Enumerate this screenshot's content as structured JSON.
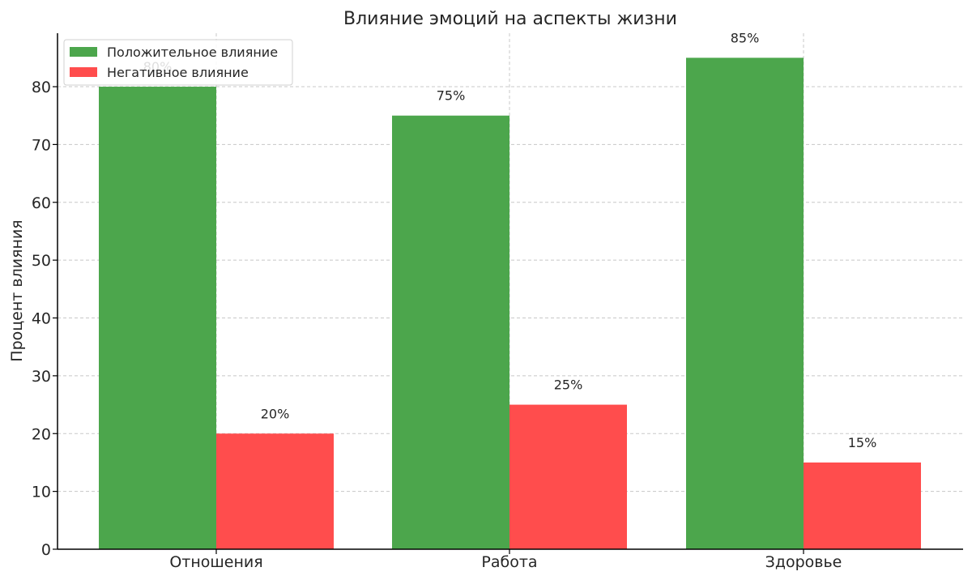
{
  "chart_data": {
    "type": "bar",
    "title": "Влияние эмоций на аспекты жизни",
    "xlabel": "",
    "ylabel": "Процент влияния",
    "categories": [
      "Отношения",
      "Работа",
      "Здоровье"
    ],
    "series": [
      {
        "name": "Положительное влияние",
        "color": "#4ca64c",
        "values": [
          80,
          75,
          85
        ],
        "labels": [
          "80%",
          "75%",
          "85%"
        ]
      },
      {
        "name": "Негативное влияние",
        "color": "#ff4d4d",
        "values": [
          20,
          25,
          15
        ],
        "labels": [
          "20%",
          "25%",
          "15%"
        ]
      }
    ],
    "ylim": [
      0,
      89.25
    ],
    "yticks": [
      0,
      10,
      20,
      30,
      40,
      50,
      60,
      70,
      80
    ],
    "grid": true,
    "legend": "top-left"
  }
}
